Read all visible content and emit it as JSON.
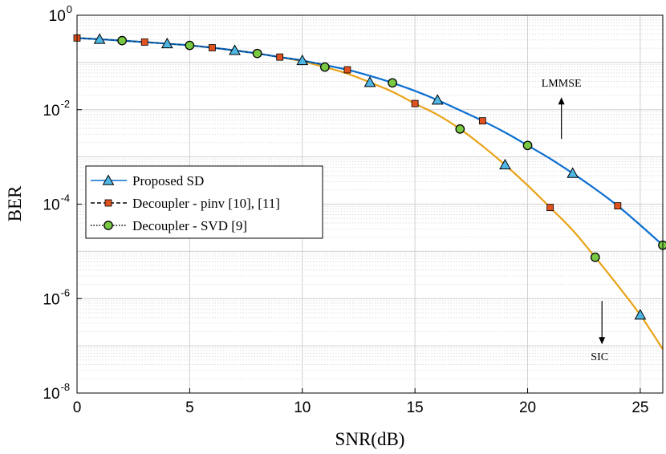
{
  "chart_data": {
    "type": "line",
    "title": "",
    "xlabel": "SNR(dB)",
    "ylabel": "BER",
    "yscale": "log",
    "xlim": [
      0,
      26
    ],
    "ylim_exponents": [
      -8,
      0
    ],
    "grid": true,
    "legend_position": "middle-left",
    "x_ticks": [
      "0",
      "5",
      "10",
      "15",
      "20",
      "25"
    ],
    "y_ticks": [
      {
        "base": "10",
        "exp": "0"
      },
      {
        "base": "10",
        "exp": "-2"
      },
      {
        "base": "10",
        "exp": "-4"
      },
      {
        "base": "10",
        "exp": "-6"
      },
      {
        "base": "10",
        "exp": "-8"
      }
    ],
    "x": [
      0,
      1,
      2,
      3,
      4,
      5,
      6,
      7,
      8,
      9,
      10,
      11,
      12,
      13,
      14,
      15,
      16,
      17,
      18,
      19,
      20,
      21,
      22,
      23,
      24,
      25,
      26
    ],
    "lmmse": [
      0.33,
      0.31,
      0.29,
      0.27,
      0.25,
      0.23,
      0.205,
      0.18,
      0.155,
      0.13,
      0.11,
      0.088,
      0.07,
      0.052,
      0.037,
      0.025,
      0.016,
      0.0097,
      0.0058,
      0.0033,
      0.00175,
      0.00092,
      0.00045,
      0.00021,
      9.2e-05,
      3.6e-05,
      1.35e-05
    ],
    "sic": [
      0.33,
      0.31,
      0.29,
      0.27,
      0.25,
      0.23,
      0.205,
      0.18,
      0.155,
      0.13,
      0.105,
      0.08,
      0.058,
      0.038,
      0.024,
      0.0135,
      0.0078,
      0.0039,
      0.0017,
      0.00068,
      0.00025,
      8.5e-05,
      2.8e-05,
      7.5e-06,
      1.9e-06,
      4.5e-07,
      8.5e-08
    ],
    "series": [
      {
        "name": "Proposed SD",
        "legend": "Proposed SD",
        "marker": "triangle",
        "marker_color": "#4fb6e3",
        "line_color": "#0a6ed1",
        "line_style": "solid",
        "offset": 1,
        "step": 3
      },
      {
        "name": "Decoupler - pinv [10], [11]",
        "legend": "Decoupler - pinv [10], [11]",
        "marker": "square",
        "marker_color": "#e0521f",
        "line_color": "#000000",
        "line_style": "dashed",
        "offset": 0,
        "step": 3
      },
      {
        "name": "Decoupler - SVD [9]",
        "legend": "Decoupler - SVD [9]",
        "marker": "circle",
        "marker_color": "#7ac943",
        "line_color": "#000000",
        "line_style": "dotted",
        "offset": 2,
        "step": 3
      }
    ],
    "curve_colors": {
      "lmmse": "#0a6ed1",
      "sic": "#e8a317"
    },
    "annotations": [
      {
        "label": "LMMSE",
        "x": 21.5,
        "y_exp": -1.6,
        "arrow": "up"
      },
      {
        "label": "SIC",
        "x": 23.3,
        "y_exp": -6.9,
        "arrow": "down"
      }
    ]
  }
}
